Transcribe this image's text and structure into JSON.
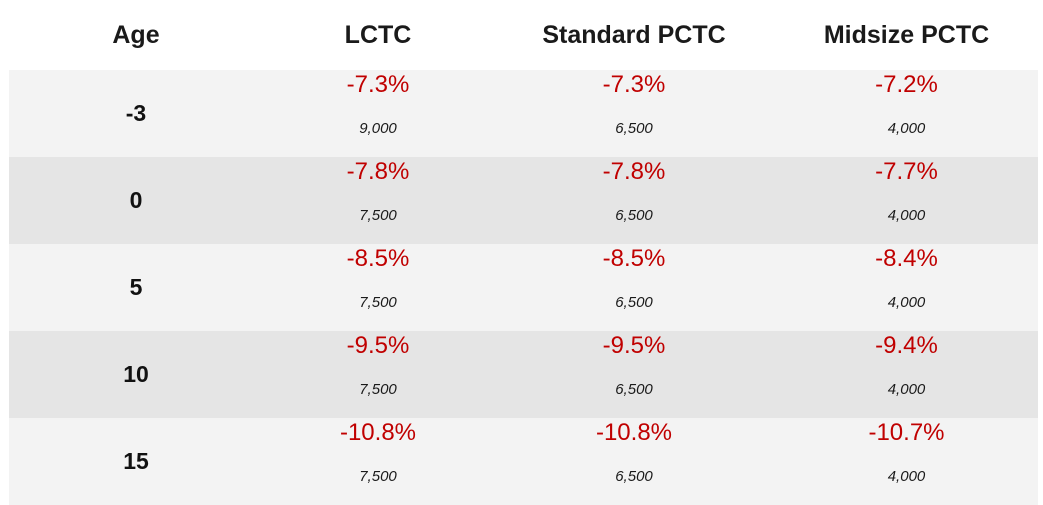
{
  "headers": [
    "Age",
    "LCTC",
    "Standard PCTC",
    "Midsize PCTC"
  ],
  "colors": {
    "percent_text": "#c00000",
    "row_light": "#f3f3f3",
    "row_dark": "#e5e5e5"
  },
  "rows": [
    {
      "age": "-3",
      "cells": [
        {
          "pct": "-7.3%",
          "count": "9,000"
        },
        {
          "pct": "-7.3%",
          "count": "6,500"
        },
        {
          "pct": "-7.2%",
          "count": "4,000"
        }
      ]
    },
    {
      "age": "0",
      "cells": [
        {
          "pct": "-7.8%",
          "count": "7,500"
        },
        {
          "pct": "-7.8%",
          "count": "6,500"
        },
        {
          "pct": "-7.7%",
          "count": "4,000"
        }
      ]
    },
    {
      "age": "5",
      "cells": [
        {
          "pct": "-8.5%",
          "count": "7,500"
        },
        {
          "pct": "-8.5%",
          "count": "6,500"
        },
        {
          "pct": "-8.4%",
          "count": "4,000"
        }
      ]
    },
    {
      "age": "10",
      "cells": [
        {
          "pct": "-9.5%",
          "count": "7,500"
        },
        {
          "pct": "-9.5%",
          "count": "6,500"
        },
        {
          "pct": "-9.4%",
          "count": "4,000"
        }
      ]
    },
    {
      "age": "15",
      "cells": [
        {
          "pct": "-10.8%",
          "count": "7,500"
        },
        {
          "pct": "-10.8%",
          "count": "6,500"
        },
        {
          "pct": "-10.7%",
          "count": "4,000"
        }
      ]
    }
  ]
}
